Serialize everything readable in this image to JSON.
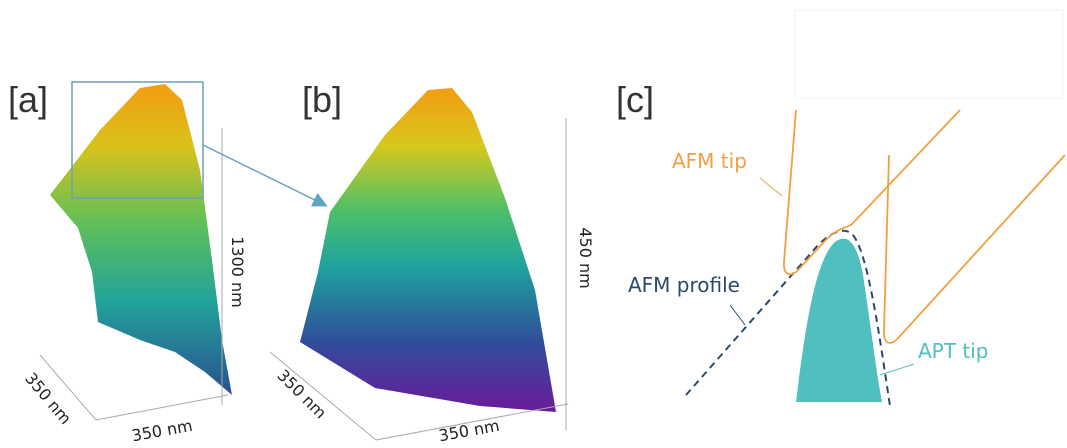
{
  "panels": {
    "a": {
      "label": "[a]",
      "z_axis": "1300 nm",
      "y_axis": "350 nm",
      "x_axis": "350 nm"
    },
    "b": {
      "label": "[b]",
      "z_axis": "450 nm",
      "y_axis": "350 nm",
      "x_axis": "350 nm"
    },
    "c": {
      "label": "[c]",
      "afm_tip": "AFM tip",
      "afm_profile": "AFM profile",
      "apt_tip": "APT tip"
    }
  }
}
